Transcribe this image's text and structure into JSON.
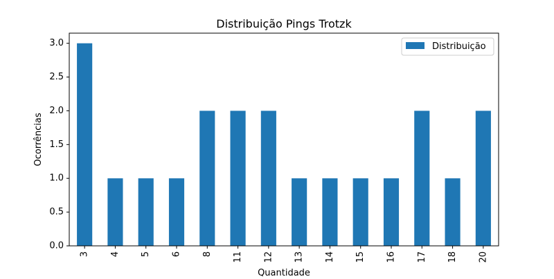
{
  "chart_data": {
    "type": "bar",
    "title": "Distribuição Pings Trotzk",
    "xlabel": "Quantidade",
    "ylabel": "Ocorrências",
    "categories": [
      "3",
      "4",
      "5",
      "6",
      "8",
      "11",
      "12",
      "13",
      "14",
      "15",
      "16",
      "17",
      "18",
      "20"
    ],
    "series": [
      {
        "name": "Distribuição",
        "values": [
          3,
          1,
          1,
          1,
          2,
          2,
          2,
          1,
          1,
          1,
          1,
          2,
          1,
          2
        ],
        "color": "#1f77b4"
      }
    ],
    "ylim": [
      0,
      3.15
    ],
    "yticks": [
      "0.0",
      "0.5",
      "1.0",
      "1.5",
      "2.0",
      "2.5",
      "3.0"
    ],
    "grid": false,
    "legend_position": "top-right"
  }
}
